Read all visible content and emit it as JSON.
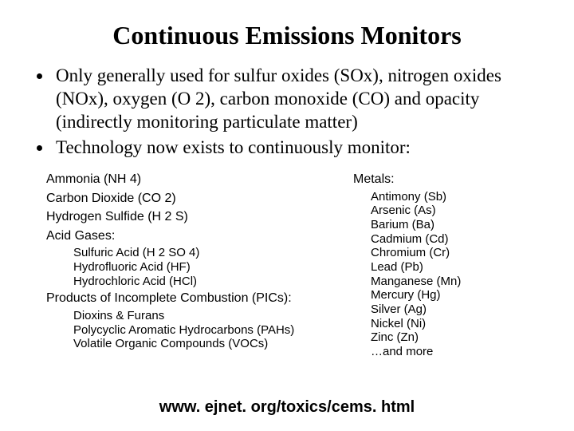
{
  "title": "Continuous Emissions Monitors",
  "bullets": [
    "Only generally used for sulfur oxides (SOx), nitrogen oxides (NOx), oxygen (O 2), carbon monoxide (CO) and opacity (indirectly monitoring particulate matter)",
    "Technology now exists to continuously monitor:"
  ],
  "left": {
    "ammonia": "Ammonia (NH 4)",
    "co2": "Carbon Dioxide (CO 2)",
    "h2s": "Hydrogen Sulfide (H 2 S)",
    "acid_head": "Acid Gases:",
    "acid_items": [
      "Sulfuric Acid (H 2 SO 4)",
      "Hydrofluoric Acid (HF)",
      "Hydrochloric Acid (HCl)"
    ],
    "pic_head": "Products of Incomplete Combustion (PICs):",
    "pic_items": [
      "Dioxins & Furans",
      "Polycyclic Aromatic Hydrocarbons (PAHs)",
      "Volatile Organic Compounds (VOCs)"
    ]
  },
  "right": {
    "metals_head": "Metals:",
    "metals_items": [
      "Antimony (Sb)",
      "Arsenic (As)",
      "Barium (Ba)",
      "Cadmium (Cd)",
      "Chromium (Cr)",
      "Lead (Pb)",
      "Manganese (Mn)",
      "Mercury (Hg)",
      "Silver (Ag)",
      "Nickel (Ni)",
      "Zinc (Zn)",
      "…and more"
    ]
  },
  "footer": "www. ejnet. org/toxics/cems. html"
}
